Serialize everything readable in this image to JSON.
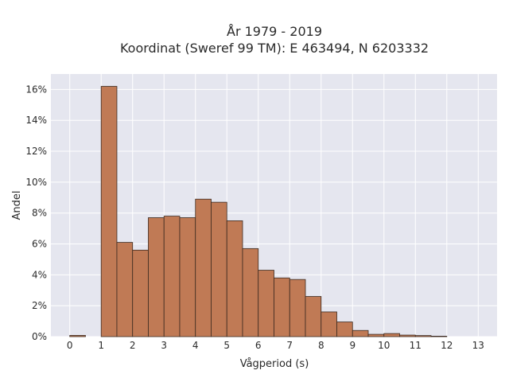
{
  "chart_data": {
    "type": "bar",
    "title": "År 1979 - 2019",
    "subtitle": "Koordinat (Sweref 99 TM): E 463494, N 6203332",
    "xlabel": "Vågperiod (s)",
    "ylabel": "Andel",
    "bin_width": 0.5,
    "bin_starts": [
      0,
      1,
      1.5,
      2,
      2.5,
      3,
      3.5,
      4,
      4.5,
      5,
      5.5,
      6,
      6.5,
      7,
      7.5,
      8,
      8.5,
      9,
      9.5,
      10,
      10.5,
      11,
      11.5
    ],
    "values": [
      0.08,
      16.2,
      6.1,
      5.6,
      7.7,
      7.8,
      7.7,
      8.9,
      8.7,
      7.5,
      5.7,
      4.3,
      3.8,
      3.7,
      2.6,
      1.6,
      0.95,
      0.4,
      0.15,
      0.2,
      0.1,
      0.07,
      0.03
    ],
    "xlim": [
      -0.6,
      13.6
    ],
    "ylim": [
      0,
      17
    ],
    "x_ticks": [
      0,
      1,
      2,
      3,
      4,
      5,
      6,
      7,
      8,
      9,
      10,
      11,
      12,
      13
    ],
    "x_tick_labels": [
      "0",
      "1",
      "2",
      "3",
      "4",
      "5",
      "6",
      "7",
      "8",
      "9",
      "10",
      "11",
      "12",
      "13"
    ],
    "y_ticks": [
      0,
      2,
      4,
      6,
      8,
      10,
      12,
      14,
      16
    ],
    "y_tick_labels": [
      "0%",
      "2%",
      "4%",
      "6%",
      "8%",
      "10%",
      "12%",
      "14%",
      "16%"
    ],
    "grid": true,
    "colors": {
      "bar_fill": "#c07a55",
      "bar_stroke": "#3b2a20",
      "plot_background": "#e5e6ef",
      "grid": "#ffffff"
    }
  }
}
